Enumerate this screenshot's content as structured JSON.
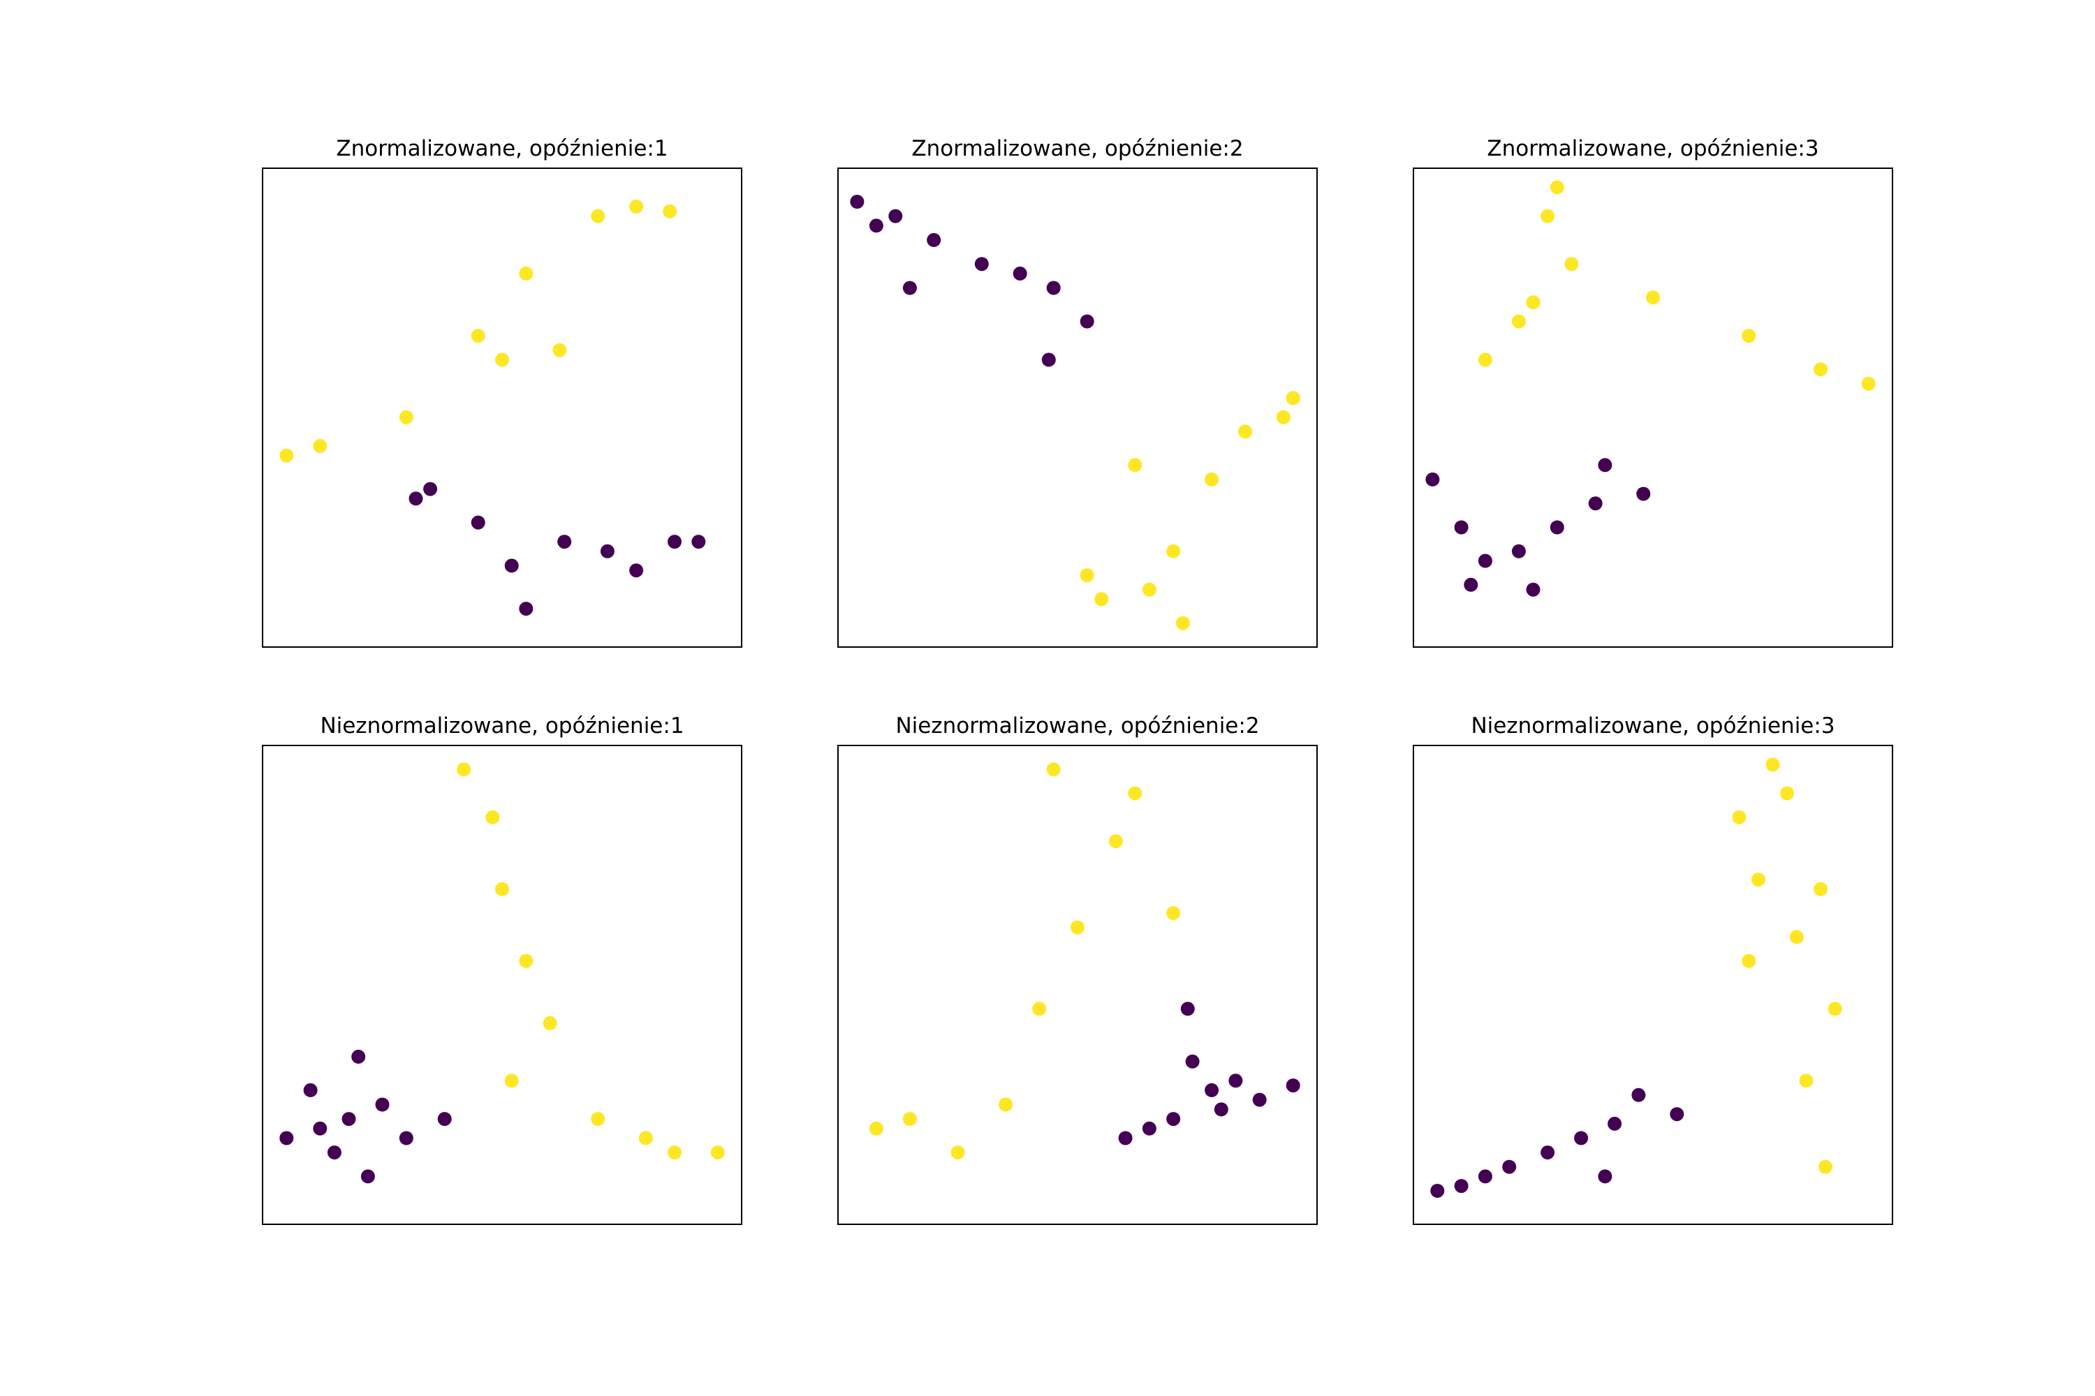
{
  "colors": {
    "class_0": "#440154",
    "class_1": "#fde725",
    "frame": "#000000",
    "background": "#ffffff"
  },
  "chart_data": [
    {
      "type": "scatter",
      "title": "Znormalizowane, opóźnienie:1",
      "xlim": [
        0,
        1
      ],
      "ylim": [
        0,
        1
      ],
      "series": [
        {
          "values": [
            [
              0.55,
              0.78
            ],
            [
              0.45,
              0.65
            ],
            [
              0.3,
              0.48
            ],
            [
              0.7,
              0.9
            ],
            [
              0.12,
              0.42
            ],
            [
              0.5,
              0.6
            ],
            [
              0.78,
              0.92
            ],
            [
              0.62,
              0.62
            ],
            [
              0.85,
              0.91
            ],
            [
              0.05,
              0.4
            ]
          ]
        },
        {
          "values": [
            [
              0.63,
              0.22
            ],
            [
              0.52,
              0.17
            ],
            [
              0.72,
              0.2
            ],
            [
              0.45,
              0.26
            ],
            [
              0.78,
              0.16
            ],
            [
              0.55,
              0.08
            ],
            [
              0.86,
              0.22
            ],
            [
              0.35,
              0.33
            ],
            [
              0.32,
              0.31
            ],
            [
              0.91,
              0.22
            ]
          ]
        }
      ]
    },
    {
      "type": "scatter",
      "title": "Znormalizowane, opóźnienie:2",
      "xlim": [
        0,
        1
      ],
      "ylim": [
        0,
        1
      ],
      "series": [
        {
          "values": [
            [
              0.7,
              0.2
            ],
            [
              0.65,
              0.12
            ],
            [
              0.78,
              0.35
            ],
            [
              0.85,
              0.45
            ],
            [
              0.93,
              0.48
            ],
            [
              0.55,
              0.1
            ],
            [
              0.62,
              0.38
            ],
            [
              0.52,
              0.15
            ],
            [
              0.72,
              0.05
            ],
            [
              0.95,
              0.52
            ]
          ]
        },
        {
          "values": [
            [
              0.2,
              0.85
            ],
            [
              0.12,
              0.9
            ],
            [
              0.3,
              0.8
            ],
            [
              0.38,
              0.78
            ],
            [
              0.45,
              0.75
            ],
            [
              0.15,
              0.75
            ],
            [
              0.52,
              0.68
            ],
            [
              0.08,
              0.88
            ],
            [
              0.44,
              0.6
            ],
            [
              0.04,
              0.93
            ]
          ]
        }
      ]
    },
    {
      "type": "scatter",
      "title": "Znormalizowane, opóźnienie:3",
      "xlim": [
        0,
        1
      ],
      "ylim": [
        0,
        1
      ],
      "series": [
        {
          "values": [
            [
              0.33,
              0.8
            ],
            [
              0.25,
              0.72
            ],
            [
              0.28,
              0.9
            ],
            [
              0.3,
              0.96
            ],
            [
              0.5,
              0.73
            ],
            [
              0.7,
              0.65
            ],
            [
              0.85,
              0.58
            ],
            [
              0.95,
              0.55
            ],
            [
              0.22,
              0.68
            ],
            [
              0.15,
              0.6
            ]
          ]
        },
        {
          "values": [
            [
              0.22,
              0.2
            ],
            [
              0.15,
              0.18
            ],
            [
              0.3,
              0.25
            ],
            [
              0.38,
              0.3
            ],
            [
              0.12,
              0.13
            ],
            [
              0.4,
              0.38
            ],
            [
              0.25,
              0.12
            ],
            [
              0.1,
              0.25
            ],
            [
              0.48,
              0.32
            ],
            [
              0.04,
              0.35
            ]
          ]
        }
      ]
    },
    {
      "type": "scatter",
      "title": "Nieznormalizowane, opóźnienie:1",
      "xlim": [
        0,
        1
      ],
      "ylim": [
        0,
        1
      ],
      "series": [
        {
          "values": [
            [
              0.48,
              0.85
            ],
            [
              0.5,
              0.7
            ],
            [
              0.55,
              0.55
            ],
            [
              0.6,
              0.42
            ],
            [
              0.7,
              0.22
            ],
            [
              0.8,
              0.18
            ],
            [
              0.86,
              0.15
            ],
            [
              0.42,
              0.95
            ],
            [
              0.95,
              0.15
            ],
            [
              0.52,
              0.3
            ]
          ]
        },
        {
          "values": [
            [
              0.18,
              0.22
            ],
            [
              0.12,
              0.2
            ],
            [
              0.25,
              0.25
            ],
            [
              0.15,
              0.15
            ],
            [
              0.3,
              0.18
            ],
            [
              0.1,
              0.28
            ],
            [
              0.22,
              0.1
            ],
            [
              0.2,
              0.35
            ],
            [
              0.38,
              0.22
            ],
            [
              0.05,
              0.18
            ]
          ]
        }
      ]
    },
    {
      "type": "scatter",
      "title": "Nieznormalizowane, opóźnienie:2",
      "xlim": [
        0,
        1
      ],
      "ylim": [
        0,
        1
      ],
      "series": [
        {
          "values": [
            [
              0.25,
              0.15
            ],
            [
              0.35,
              0.25
            ],
            [
              0.42,
              0.45
            ],
            [
              0.5,
              0.62
            ],
            [
              0.58,
              0.8
            ],
            [
              0.62,
              0.9
            ],
            [
              0.15,
              0.22
            ],
            [
              0.7,
              0.65
            ],
            [
              0.08,
              0.2
            ],
            [
              0.45,
              0.95
            ]
          ]
        },
        {
          "values": [
            [
              0.7,
              0.22
            ],
            [
              0.8,
              0.24
            ],
            [
              0.88,
              0.26
            ],
            [
              0.95,
              0.29
            ],
            [
              0.78,
              0.28
            ],
            [
              0.74,
              0.34
            ],
            [
              0.65,
              0.2
            ],
            [
              0.6,
              0.18
            ],
            [
              0.83,
              0.3
            ],
            [
              0.73,
              0.45
            ]
          ]
        }
      ]
    },
    {
      "type": "scatter",
      "title": "Nieznormalizowane, opóźnienie:3",
      "xlim": [
        0,
        1
      ],
      "ylim": [
        0,
        1
      ],
      "series": [
        {
          "values": [
            [
              0.72,
              0.72
            ],
            [
              0.68,
              0.85
            ],
            [
              0.78,
              0.9
            ],
            [
              0.85,
              0.7
            ],
            [
              0.8,
              0.6
            ],
            [
              0.88,
              0.45
            ],
            [
              0.7,
              0.55
            ],
            [
              0.82,
              0.3
            ],
            [
              0.86,
              0.12
            ],
            [
              0.75,
              0.96
            ]
          ]
        },
        {
          "values": [
            [
              0.2,
              0.12
            ],
            [
              0.28,
              0.15
            ],
            [
              0.35,
              0.18
            ],
            [
              0.1,
              0.08
            ],
            [
              0.42,
              0.21
            ],
            [
              0.15,
              0.1
            ],
            [
              0.05,
              0.07
            ],
            [
              0.47,
              0.27
            ],
            [
              0.55,
              0.23
            ],
            [
              0.4,
              0.1
            ]
          ]
        }
      ]
    }
  ]
}
